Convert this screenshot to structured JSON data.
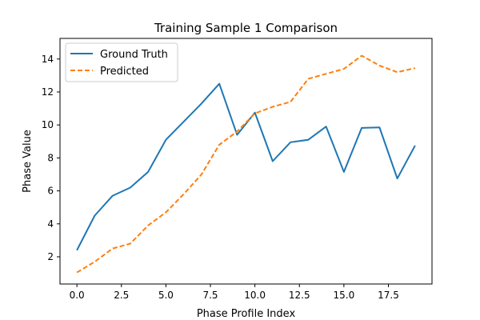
{
  "chart_data": {
    "type": "line",
    "title": "Training Sample 1 Comparison",
    "xlabel": "Phase Profile Index",
    "ylabel": "Phase Value",
    "xlim": [
      -0.95,
      19.95
    ],
    "ylim": [
      0.35,
      15.25
    ],
    "xticks": [
      0.0,
      2.5,
      5.0,
      7.5,
      10.0,
      12.5,
      15.0,
      17.5
    ],
    "xtick_labels": [
      "0.0",
      "2.5",
      "5.0",
      "7.5",
      "10.0",
      "12.5",
      "15.0",
      "17.5"
    ],
    "yticks": [
      2,
      4,
      6,
      8,
      10,
      12,
      14
    ],
    "ytick_labels": [
      "2",
      "4",
      "6",
      "8",
      "10",
      "12",
      "14"
    ],
    "grid": false,
    "legend_position": "upper-left",
    "x": [
      0,
      1,
      2,
      3,
      4,
      5,
      6,
      7,
      8,
      9,
      10,
      11,
      12,
      13,
      14,
      15,
      16,
      17,
      18,
      19
    ],
    "series": [
      {
        "name": "Ground Truth",
        "style": "solid",
        "color": "#1f77b4",
        "values": [
          2.4,
          4.5,
          5.7,
          6.2,
          7.15,
          9.1,
          10.2,
          11.3,
          12.5,
          9.4,
          10.75,
          7.8,
          8.95,
          9.1,
          9.9,
          7.15,
          9.82,
          9.85,
          6.75,
          8.75
        ]
      },
      {
        "name": "Predicted",
        "style": "dashed",
        "color": "#ff7f0e",
        "values": [
          1.05,
          1.7,
          2.5,
          2.8,
          3.9,
          4.7,
          5.8,
          7.0,
          8.8,
          9.6,
          10.7,
          11.1,
          11.4,
          12.8,
          13.1,
          13.4,
          14.2,
          13.6,
          13.2,
          13.45
        ]
      }
    ]
  }
}
